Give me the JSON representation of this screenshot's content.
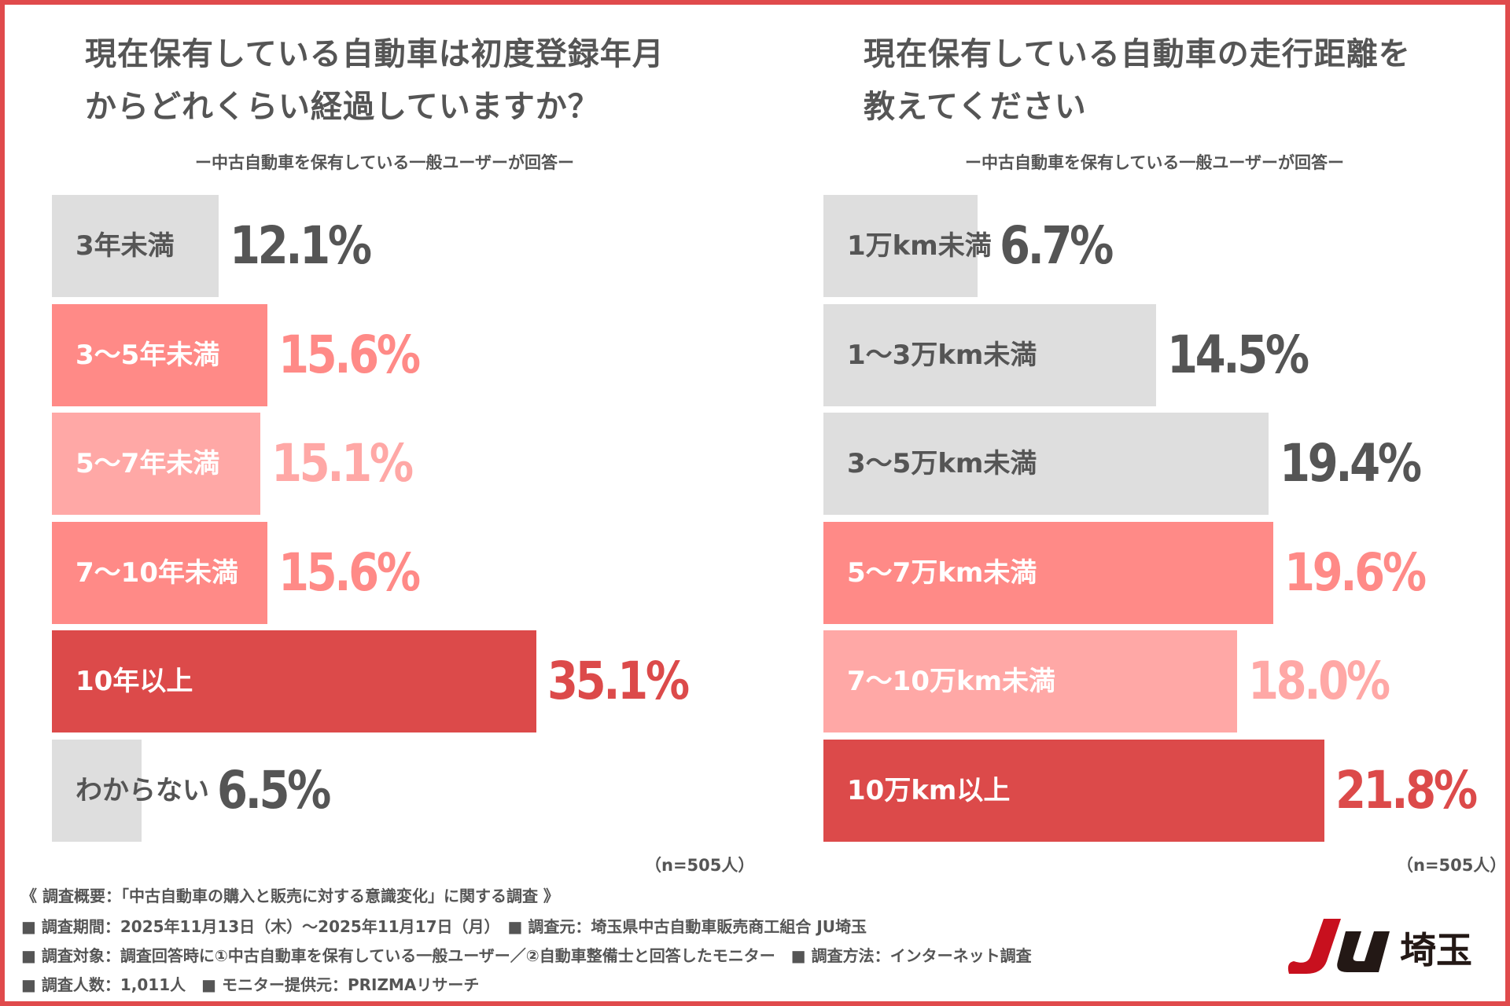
{
  "colors": {
    "border": "#e04a4c",
    "gray": "#dedede",
    "pink": "#ff8a87",
    "light_pink": "#ffa8a6",
    "red": "#dc4a4a",
    "text": "#555555"
  },
  "chart_data": [
    {
      "type": "bar",
      "orientation": "horizontal",
      "title_line1": "現在保有している自動車は初度登録年月",
      "title_line2": "からどれくらい経過していますか？",
      "subtitle": "ー中古自動車を保有している一般ユーザーが回答ー",
      "n_note": "（n=505人）",
      "categories": [
        "3年未満",
        "3〜5年未満",
        "5〜7年未満",
        "7〜10年未満",
        "10年以上",
        "わからない"
      ],
      "values": [
        12.1,
        15.6,
        15.1,
        15.6,
        35.1,
        6.5
      ],
      "labels": [
        "12.1%",
        "15.6%",
        "15.1%",
        "15.6%",
        "35.1%",
        "6.5%"
      ],
      "bar_colors": [
        "gray",
        "pink",
        "light_pink",
        "pink",
        "red",
        "gray"
      ]
    },
    {
      "type": "bar",
      "orientation": "horizontal",
      "title_line1": "現在保有している自動車の走行距離を",
      "title_line2": "教えてください",
      "subtitle": "ー中古自動車を保有している一般ユーザーが回答ー",
      "n_note": "（n=505人）",
      "categories": [
        "1万km未満",
        "1〜3万km未満",
        "3〜5万km未満",
        "5〜7万km未満",
        "7〜10万km未満",
        "10万km以上"
      ],
      "values": [
        6.7,
        14.5,
        19.4,
        19.6,
        18.0,
        21.8
      ],
      "labels": [
        "6.7%",
        "14.5%",
        "19.4%",
        "19.6%",
        "18.0%",
        "21.8%"
      ],
      "bar_colors": [
        "gray",
        "gray",
        "gray",
        "pink",
        "light_pink",
        "red"
      ]
    }
  ],
  "footer": {
    "line1": "《 調査概要：「中古自動車の購入と販売に対する意識変化」に関する調査 》",
    "line2": "■ 調査期間：2025年11月13日（木）〜2025年11月17日（月）　■ 調査元：埼玉県中古自動車販売商工組合 JU埼玉",
    "line3": "■ 調査対象：調査回答時に①中古自動車を保有している一般ユーザー／②自動車整備士と回答したモニター　■ 調査方法：インターネット調査",
    "line4": "■ 調査人数：1,011人　■ モニター提供元：PRIZMAリサーチ"
  },
  "logo": {
    "text": "JU埼玉"
  }
}
